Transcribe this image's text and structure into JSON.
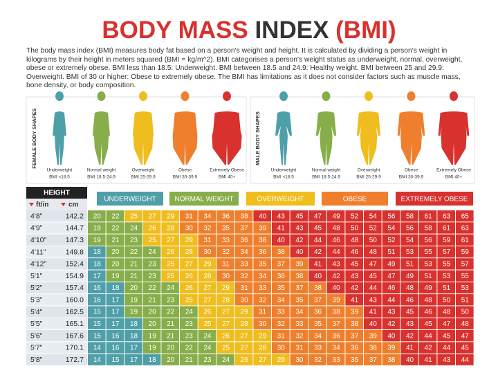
{
  "header": {
    "title_part1": "BODY MASS",
    "title_part2": "INDEX",
    "title_part3": "(BMI)",
    "description": "The body mass index (BMI) measures body fat based on a person's weight and height. It is calculated by dividing a person's weight in kilograms by their height in meters squared (BMI = kg/m^2). BMI categorises a person's weight status as underweight, normal, overweight, obese or extremely obese. BMI less than 18.5: Underweight. BMI between 18.5 and 24.9: Healthy weight. BMI between 25 and 29.9: Overweight. BMI of 30 or higher: Obese to extremely obese. The BMI has limitations as it does not consider factors such as muscle mass, bone density, or body composition."
  },
  "female_panel": {
    "label": "FEMALE BODY SHAPES"
  },
  "male_panel": {
    "label": "MALE BODY SHAPES"
  },
  "categories": [
    {
      "name": "Underweight",
      "range": "BMI <18.5",
      "legend": "UNDERWEIGHT",
      "color": "#4f9fa9",
      "upper": 18.5
    },
    {
      "name": "Normal weight",
      "range": "BMI 18.5-24.9",
      "legend": "NORMAL WEIGHT",
      "color": "#87ae4a",
      "upper": 25
    },
    {
      "name": "Overweight",
      "range": "BMI 25-29.9",
      "legend": "OVERWEIGHT",
      "color": "#f0bd1e",
      "upper": 30
    },
    {
      "name": "Obese",
      "range": "BMI 30-39.9",
      "legend": "OBESE",
      "color": "#ef7f2c",
      "upper": 40
    },
    {
      "name": "Extremely Obese",
      "range": "BMI 40+",
      "legend": "EXTREMELY OBESE",
      "color": "#d8312e"
    }
  ],
  "table": {
    "height_header": "HEIGHT",
    "ft_header": "ft/in",
    "cm_header": "cm",
    "rows": [
      {
        "ft": "4'8\"",
        "cm": "142.2",
        "bmi": [
          20,
          22,
          25,
          27,
          29,
          31,
          34,
          36,
          38,
          40,
          43,
          45,
          47,
          49,
          52,
          54,
          56,
          58,
          61,
          63,
          65
        ]
      },
      {
        "ft": "4'9\"",
        "cm": "144.7",
        "bmi": [
          19,
          22,
          24,
          26,
          28,
          30,
          32,
          35,
          37,
          39,
          41,
          43,
          45,
          48,
          50,
          52,
          54,
          56,
          58,
          61,
          63
        ]
      },
      {
        "ft": "4'10\"",
        "cm": "147.3",
        "bmi": [
          19,
          21,
          23,
          25,
          27,
          29,
          31,
          33,
          36,
          38,
          40,
          42,
          44,
          46,
          48,
          50,
          52,
          54,
          56,
          59,
          61
        ]
      },
      {
        "ft": "4'11\"",
        "cm": "149.8",
        "bmi": [
          18,
          20,
          22,
          24,
          26,
          28,
          30,
          32,
          34,
          36,
          38,
          40,
          42,
          44,
          46,
          48,
          51,
          53,
          55,
          57,
          59
        ]
      },
      {
        "ft": "4'12\"",
        "cm": "152.4",
        "bmi": [
          18,
          20,
          21,
          23,
          25,
          27,
          29,
          31,
          33,
          35,
          37,
          39,
          41,
          43,
          45,
          47,
          49,
          51,
          53,
          55,
          57
        ]
      },
      {
        "ft": "5'1\"",
        "cm": "154.9",
        "bmi": [
          17,
          19,
          21,
          23,
          25,
          26,
          28,
          30,
          32,
          34,
          36,
          38,
          40,
          42,
          43,
          45,
          47,
          49,
          51,
          53,
          55
        ]
      },
      {
        "ft": "5'2\"",
        "cm": "157.4",
        "bmi": [
          16,
          18,
          20,
          22,
          24,
          26,
          27,
          29,
          31,
          33,
          35,
          37,
          38,
          40,
          42,
          44,
          46,
          48,
          49,
          51,
          53
        ]
      },
      {
        "ft": "5'3\"",
        "cm": "160.0",
        "bmi": [
          16,
          17,
          19,
          21,
          23,
          25,
          27,
          28,
          30,
          32,
          34,
          35,
          37,
          39,
          41,
          43,
          44,
          46,
          48,
          50,
          51
        ]
      },
      {
        "ft": "5'4\"",
        "cm": "162.5",
        "bmi": [
          15,
          17,
          19,
          20,
          22,
          24,
          26,
          27,
          29,
          31,
          33,
          34,
          36,
          38,
          39,
          41,
          43,
          45,
          46,
          48,
          50
        ]
      },
      {
        "ft": "5'5\"",
        "cm": "165.1",
        "bmi": [
          15,
          17,
          18,
          20,
          21,
          23,
          25,
          27,
          28,
          30,
          32,
          33,
          35,
          37,
          38,
          40,
          42,
          43,
          45,
          47,
          48
        ]
      },
      {
        "ft": "5'6\"",
        "cm": "167.6",
        "bmi": [
          15,
          16,
          18,
          19,
          21,
          23,
          24,
          26,
          27,
          29,
          31,
          32,
          34,
          36,
          37,
          39,
          40,
          42,
          44,
          45,
          47
        ]
      },
      {
        "ft": "5'7\"",
        "cm": "170.1",
        "bmi": [
          14,
          16,
          17,
          19,
          20,
          22,
          24,
          25,
          27,
          28,
          30,
          31,
          33,
          34,
          36,
          38,
          39,
          41,
          42,
          44,
          45
        ]
      },
      {
        "ft": "5'8\"",
        "cm": "172.7",
        "bmi": [
          14,
          15,
          17,
          18,
          20,
          21,
          23,
          24,
          26,
          27,
          29,
          30,
          32,
          33,
          35,
          37,
          38,
          40,
          41,
          43,
          44
        ]
      }
    ]
  }
}
